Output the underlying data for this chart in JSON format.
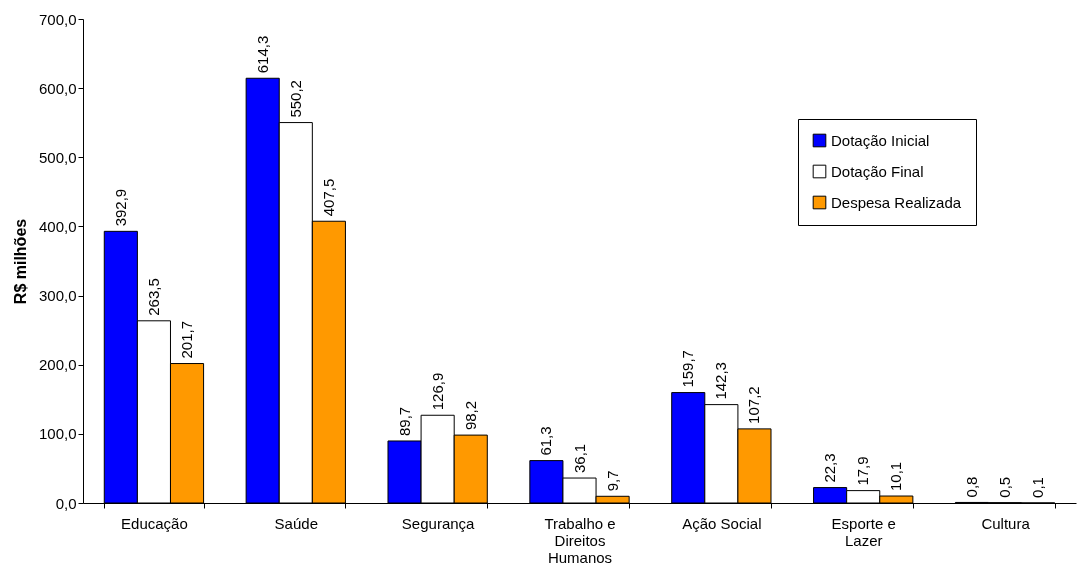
{
  "chart_data": {
    "type": "bar",
    "ylabel": "R$ milhões",
    "categories": [
      "Educação",
      "Saúde",
      "Segurança",
      "Trabalho e Direitos Humanos",
      "Ação Social",
      "Esporte e Lazer",
      "Cultura"
    ],
    "series": [
      {
        "name": "Dotação Inicial",
        "color": "#0000ff",
        "values": [
          392.9,
          614.3,
          89.7,
          61.3,
          159.7,
          22.3,
          0.8
        ],
        "value_labels": [
          "392,9",
          "614,3",
          "89,7",
          "61,3",
          "159,7",
          "22,3",
          "0,8"
        ]
      },
      {
        "name": "Dotação Final",
        "color": "#ffffff",
        "values": [
          263.5,
          550.2,
          126.9,
          36.1,
          142.3,
          17.9,
          0.5
        ],
        "value_labels": [
          "263,5",
          "550,2",
          "126,9",
          "36,1",
          "142,3",
          "17,9",
          "0,5"
        ]
      },
      {
        "name": "Despesa Realizada",
        "color": "#ff9900",
        "values": [
          201.7,
          407.5,
          98.2,
          9.7,
          107.2,
          10.1,
          0.1
        ],
        "value_labels": [
          "201,7",
          "407,5",
          "98,2",
          "9,7",
          "107,2",
          "10,1",
          "0,1"
        ]
      }
    ],
    "ylim": [
      0,
      700
    ],
    "yticks": [
      {
        "value": 0,
        "label": "0,0"
      },
      {
        "value": 100,
        "label": "100,0"
      },
      {
        "value": 200,
        "label": "200,0"
      },
      {
        "value": 300,
        "label": "300,0"
      },
      {
        "value": 400,
        "label": "400,0"
      },
      {
        "value": 500,
        "label": "500,0"
      },
      {
        "value": 600,
        "label": "600,0"
      },
      {
        "value": 700,
        "label": "700,0"
      }
    ],
    "grid": false,
    "legend": "top right"
  }
}
